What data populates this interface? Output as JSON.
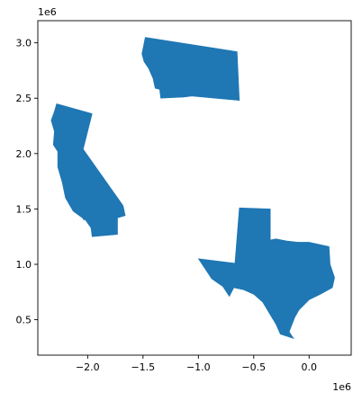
{
  "chart_data": {
    "type": "map",
    "xlim": [
      -2450000,
      380000
    ],
    "ylim": [
      180000,
      3200000
    ],
    "x_ticks": [
      -2000000,
      -1500000,
      -1000000,
      -500000,
      0
    ],
    "x_tick_labels": [
      "−2.0",
      "−1.5",
      "−1.0",
      "−0.5",
      "0.0"
    ],
    "y_ticks": [
      500000,
      1000000,
      1500000,
      2000000,
      2500000,
      3000000
    ],
    "y_tick_labels": [
      "0.5",
      "1.0",
      "1.5",
      "2.0",
      "2.5",
      "3.0"
    ],
    "x_offset_label": "1e6",
    "y_offset_label": "1e6",
    "fill_color": "#1f77b4",
    "grid": false,
    "shapes": [
      {
        "key": "montana",
        "points": [
          [
            -1480000,
            3050000
          ],
          [
            -650000,
            2920000
          ],
          [
            -630000,
            2480000
          ],
          [
            -1060000,
            2520000
          ],
          [
            -1130000,
            2510000
          ],
          [
            -1340000,
            2500000
          ],
          [
            -1350000,
            2580000
          ],
          [
            -1390000,
            2590000
          ],
          [
            -1410000,
            2680000
          ],
          [
            -1450000,
            2770000
          ],
          [
            -1490000,
            2830000
          ],
          [
            -1510000,
            2900000
          ]
        ]
      },
      {
        "key": "california",
        "points": [
          [
            -2280000,
            2450000
          ],
          [
            -1960000,
            2360000
          ],
          [
            -2040000,
            2040000
          ],
          [
            -1680000,
            1530000
          ],
          [
            -1660000,
            1440000
          ],
          [
            -1730000,
            1420000
          ],
          [
            -1730000,
            1270000
          ],
          [
            -1960000,
            1250000
          ],
          [
            -1970000,
            1330000
          ],
          [
            -2020000,
            1400000
          ],
          [
            -2130000,
            1480000
          ],
          [
            -2200000,
            1600000
          ],
          [
            -2230000,
            1740000
          ],
          [
            -2270000,
            1880000
          ],
          [
            -2270000,
            2020000
          ],
          [
            -2310000,
            2080000
          ],
          [
            -2300000,
            2200000
          ],
          [
            -2330000,
            2300000
          ],
          [
            -2300000,
            2380000
          ]
        ]
      },
      {
        "key": "channel-island-1",
        "points": [
          [
            -2100000,
            1480000
          ],
          [
            -2060000,
            1460000
          ],
          [
            -2080000,
            1450000
          ]
        ]
      },
      {
        "key": "channel-island-2",
        "points": [
          [
            -2050000,
            1430000
          ],
          [
            -2020000,
            1410000
          ],
          [
            -2035000,
            1400000
          ]
        ]
      },
      {
        "key": "texas",
        "points": [
          [
            -630000,
            1510000
          ],
          [
            -350000,
            1500000
          ],
          [
            -350000,
            1220000
          ],
          [
            -300000,
            1230000
          ],
          [
            -200000,
            1210000
          ],
          [
            -100000,
            1200000
          ],
          [
            0,
            1200000
          ],
          [
            180000,
            1160000
          ],
          [
            190000,
            1000000
          ],
          [
            230000,
            880000
          ],
          [
            210000,
            790000
          ],
          [
            100000,
            730000
          ],
          [
            0,
            680000
          ],
          [
            -90000,
            590000
          ],
          [
            -130000,
            520000
          ],
          [
            -180000,
            390000
          ],
          [
            -140000,
            330000
          ],
          [
            -260000,
            370000
          ],
          [
            -300000,
            460000
          ],
          [
            -360000,
            560000
          ],
          [
            -420000,
            660000
          ],
          [
            -500000,
            730000
          ],
          [
            -590000,
            770000
          ],
          [
            -680000,
            790000
          ],
          [
            -720000,
            710000
          ],
          [
            -780000,
            800000
          ],
          [
            -880000,
            870000
          ],
          [
            -1000000,
            1050000
          ],
          [
            -670000,
            1010000
          ]
        ]
      }
    ]
  }
}
